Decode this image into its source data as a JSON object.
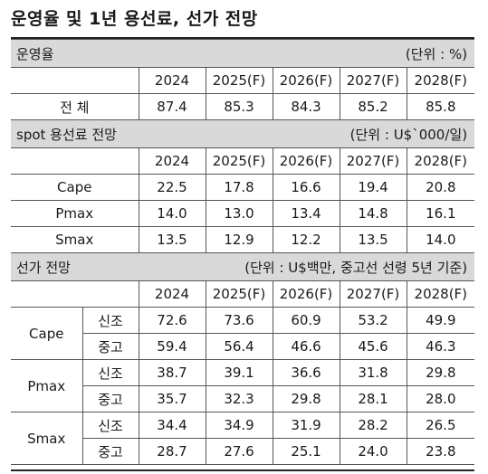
{
  "title": "운영율 및 1년 용선료, 선가 전망",
  "years": [
    "2024",
    "2025(F)",
    "2026(F)",
    "2027(F)",
    "2028(F)"
  ],
  "sections": {
    "utilization": {
      "label": "운영율",
      "unit": "(단위 : %)",
      "rows": [
        {
          "label": "전    체",
          "values": [
            "87.4",
            "85.3",
            "84.3",
            "85.2",
            "85.8"
          ]
        }
      ]
    },
    "charter": {
      "label": "spot 용선료 전망",
      "unit": "(단위 : U$`000/일)",
      "rows": [
        {
          "label": "Cape",
          "values": [
            "22.5",
            "17.8",
            "16.6",
            "19.4",
            "20.8"
          ]
        },
        {
          "label": "Pmax",
          "values": [
            "14.0",
            "13.0",
            "13.4",
            "14.8",
            "16.1"
          ]
        },
        {
          "label": "Smax",
          "values": [
            "13.5",
            "12.9",
            "12.2",
            "13.5",
            "14.0"
          ]
        }
      ]
    },
    "price": {
      "label": "선가 전망",
      "unit": "(단위 : U$백만, 중고선 선령 5년 기준)",
      "groups": [
        {
          "label": "Cape",
          "rows": [
            {
              "sub": "신조",
              "values": [
                "72.6",
                "73.6",
                "60.9",
                "53.2",
                "49.9"
              ]
            },
            {
              "sub": "중고",
              "values": [
                "59.4",
                "56.4",
                "46.6",
                "45.6",
                "46.3"
              ]
            }
          ]
        },
        {
          "label": "Pmax",
          "rows": [
            {
              "sub": "신조",
              "values": [
                "38.7",
                "39.1",
                "36.6",
                "31.8",
                "29.8"
              ]
            },
            {
              "sub": "중고",
              "values": [
                "35.7",
                "32.3",
                "29.8",
                "28.1",
                "28.0"
              ]
            }
          ]
        },
        {
          "label": "Smax",
          "rows": [
            {
              "sub": "신조",
              "values": [
                "34.4",
                "34.9",
                "31.9",
                "28.2",
                "26.5"
              ]
            },
            {
              "sub": "중고",
              "values": [
                "28.7",
                "27.6",
                "25.1",
                "24.0",
                "23.8"
              ]
            }
          ]
        }
      ]
    }
  }
}
